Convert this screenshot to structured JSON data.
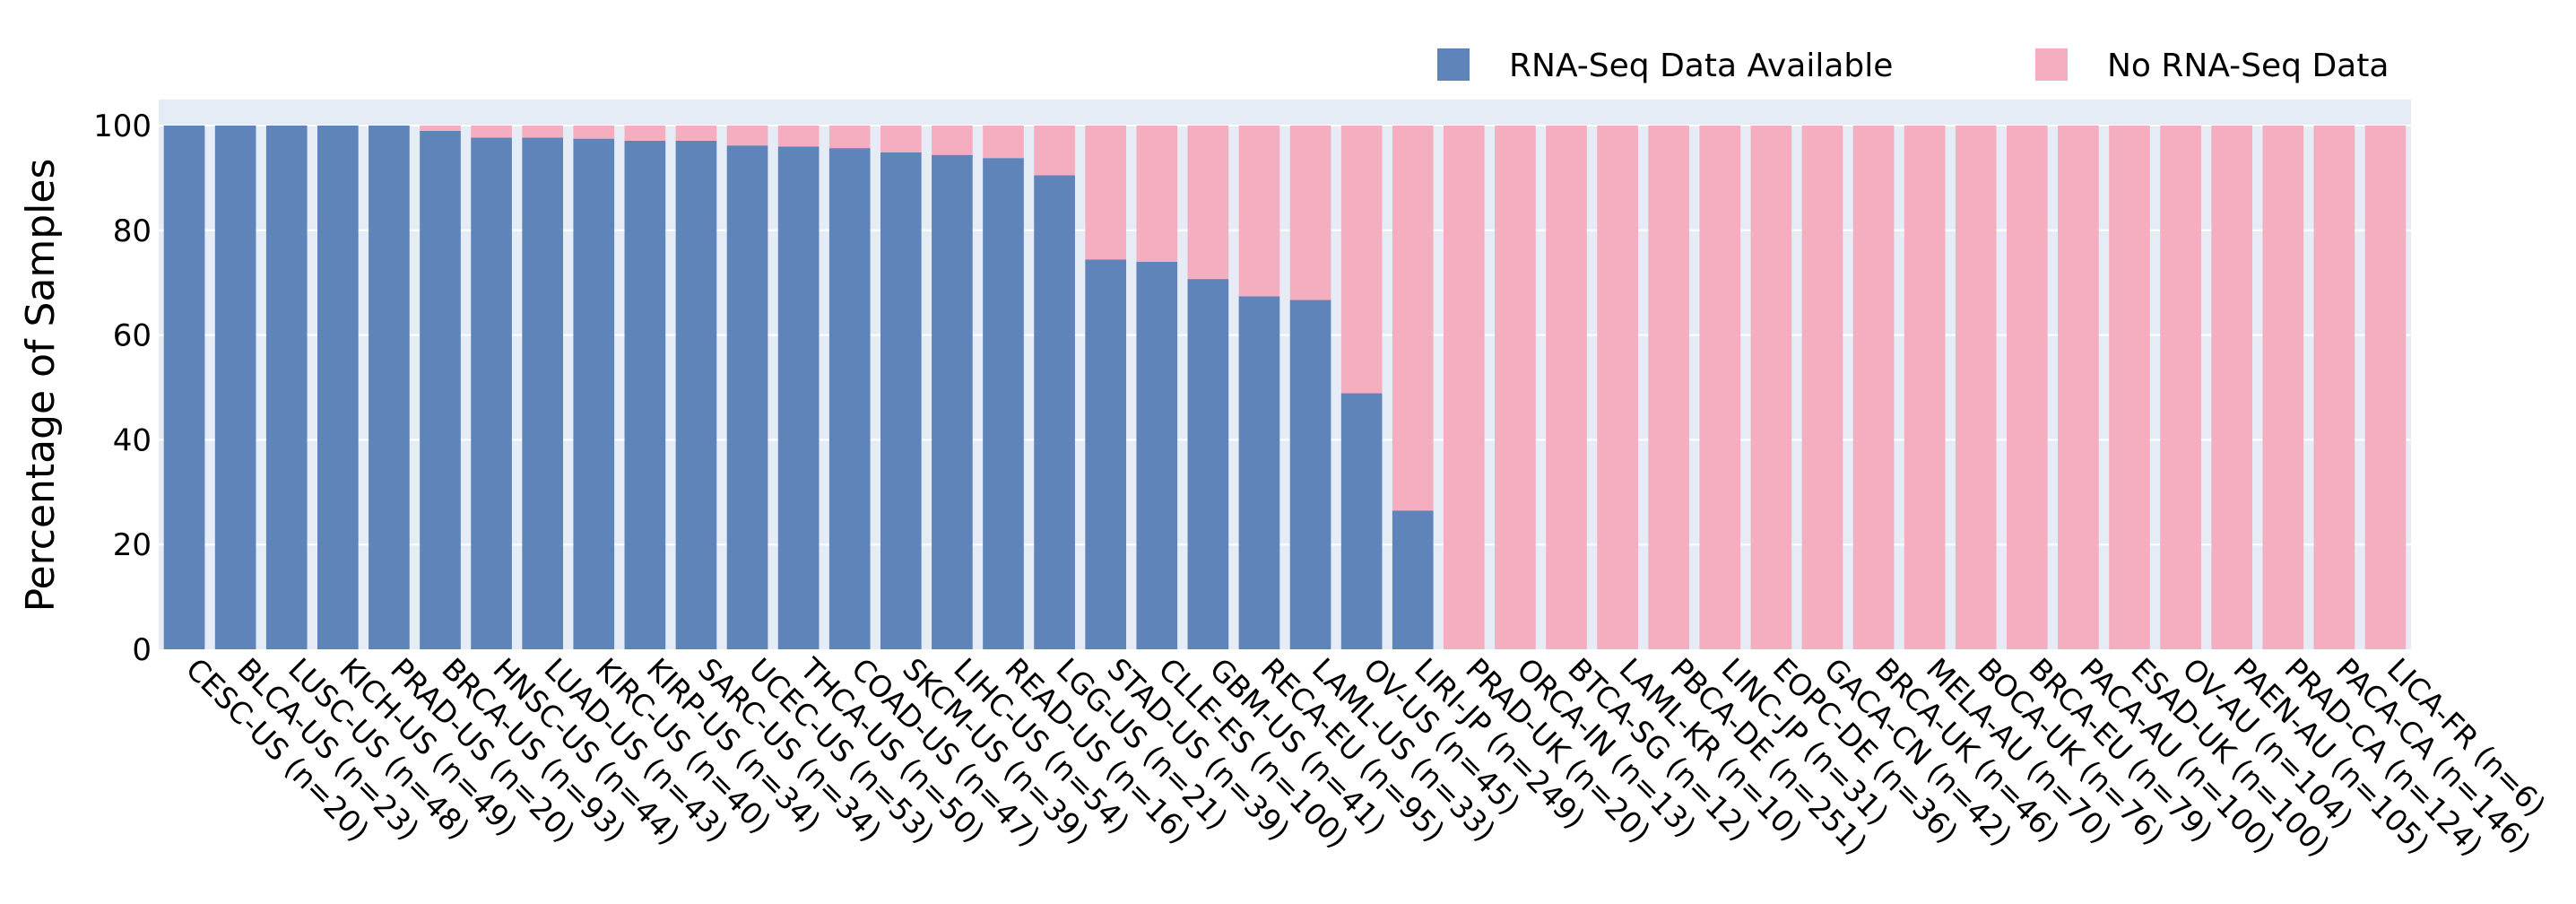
{
  "chart_data": {
    "type": "bar",
    "stacked": true,
    "title": "",
    "xlabel": "",
    "ylabel": "Percentage of Samples",
    "ylim": [
      0,
      100
    ],
    "yticks": [
      0,
      20,
      40,
      60,
      80,
      100
    ],
    "grid": true,
    "legend_position": "top-right",
    "categories": [
      "CESC-US (n=20)",
      "BLCA-US (n=23)",
      "LUSC-US (n=48)",
      "KICH-US (n=49)",
      "PRAD-US (n=20)",
      "BRCA-US (n=93)",
      "HNSC-US (n=44)",
      "LUAD-US (n=43)",
      "KIRC-US (n=40)",
      "KIRP-US (n=34)",
      "SARC-US (n=34)",
      "UCEC-US (n=53)",
      "THCA-US (n=50)",
      "COAD-US (n=47)",
      "SKCM-US (n=39)",
      "LIHC-US (n=54)",
      "READ-US (n=16)",
      "LGG-US (n=21)",
      "STAD-US (n=39)",
      "CLLE-ES (n=100)",
      "GBM-US (n=41)",
      "RECA-EU (n=95)",
      "LAML-US (n=33)",
      "OV-US (n=45)",
      "LIRI-JP (n=249)",
      "PRAD-UK (n=20)",
      "ORCA-IN (n=13)",
      "BTCA-SG (n=12)",
      "LAML-KR (n=10)",
      "PBCA-DE (n=251)",
      "LINC-JP (n=31)",
      "EOPC-DE (n=36)",
      "GACA-CN (n=42)",
      "BRCA-UK (n=46)",
      "MELA-AU (n=70)",
      "BOCA-UK (n=76)",
      "BRCA-EU (n=79)",
      "PACA-AU (n=100)",
      "ESAD-UK (n=100)",
      "OV-AU (n=104)",
      "PAEN-AU (n=105)",
      "PRAD-CA (n=124)",
      "PACA-CA (n=146)",
      "LICA-FR (n=6)"
    ],
    "series": [
      {
        "name": "RNA-Seq Data Available",
        "color": "#5f84ba",
        "values": [
          100,
          100,
          100,
          100,
          100,
          99,
          97.7,
          97.7,
          97.5,
          97.1,
          97.1,
          96.2,
          96,
          95.7,
          94.9,
          94.4,
          93.8,
          90.5,
          74.4,
          74,
          70.7,
          67.4,
          66.7,
          48.9,
          26.5,
          0,
          0,
          0,
          0,
          0,
          0,
          0,
          0,
          0,
          0,
          0,
          0,
          0,
          0,
          0,
          0,
          0,
          0,
          0
        ]
      },
      {
        "name": "No RNA-Seq Data",
        "color": "#f4aec0",
        "values": [
          0,
          0,
          0,
          0,
          0,
          1,
          2.3,
          2.3,
          2.5,
          2.9,
          2.9,
          3.8,
          4,
          4.3,
          5.1,
          5.6,
          6.2,
          9.5,
          25.6,
          26,
          29.3,
          32.6,
          33.3,
          51.1,
          73.5,
          100,
          100,
          100,
          100,
          100,
          100,
          100,
          100,
          100,
          100,
          100,
          100,
          100,
          100,
          100,
          100,
          100,
          100,
          100
        ]
      }
    ],
    "plot_background": "#e5ecf6",
    "gridline_color": "#ffffff"
  }
}
